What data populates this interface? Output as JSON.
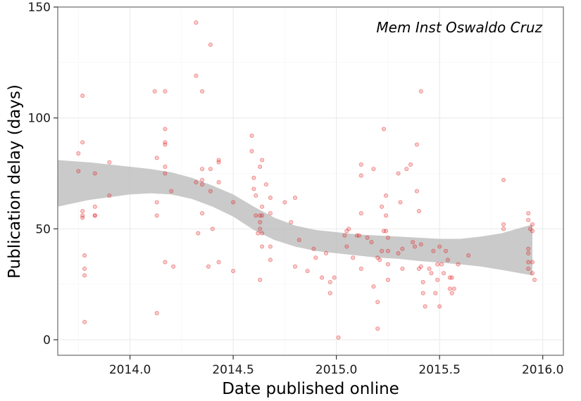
{
  "chart_data": {
    "type": "scatter",
    "title": "",
    "annotation": "Mem Inst Oswaldo Cruz",
    "xlabel": "Date published online",
    "ylabel": "Publication delay (days)",
    "xlim": [
      2013.65,
      2016.1
    ],
    "ylim": [
      -7,
      150
    ],
    "x_ticks": [
      2014.0,
      2014.5,
      2015.0,
      2015.5,
      2016.0
    ],
    "x_tick_labels": [
      "2014.0",
      "2014.5",
      "2015.0",
      "2015.5",
      "2016.0"
    ],
    "y_ticks": [
      0,
      50,
      100,
      150
    ],
    "y_tick_labels": [
      "0",
      "50",
      "100",
      "150"
    ],
    "grid": true,
    "point_color": "#e41a1c",
    "band_color": "#bdbdbd",
    "points": [
      [
        2013.75,
        84
      ],
      [
        2013.75,
        76
      ],
      [
        2013.77,
        110
      ],
      [
        2013.77,
        89
      ],
      [
        2013.77,
        58
      ],
      [
        2013.77,
        56
      ],
      [
        2013.77,
        55
      ],
      [
        2013.78,
        38
      ],
      [
        2013.78,
        32
      ],
      [
        2013.78,
        29
      ],
      [
        2013.78,
        8
      ],
      [
        2013.83,
        75
      ],
      [
        2013.83,
        60
      ],
      [
        2013.83,
        56
      ],
      [
        2013.83,
        56
      ],
      [
        2013.9,
        80
      ],
      [
        2013.9,
        65
      ],
      [
        2014.12,
        112
      ],
      [
        2014.13,
        82
      ],
      [
        2014.13,
        62
      ],
      [
        2014.13,
        56
      ],
      [
        2014.13,
        12
      ],
      [
        2014.17,
        112
      ],
      [
        2014.17,
        95
      ],
      [
        2014.17,
        89
      ],
      [
        2014.17,
        88
      ],
      [
        2014.17,
        78
      ],
      [
        2014.17,
        75
      ],
      [
        2014.17,
        35
      ],
      [
        2014.2,
        67
      ],
      [
        2014.21,
        33
      ],
      [
        2014.32,
        143
      ],
      [
        2014.32,
        119
      ],
      [
        2014.32,
        71
      ],
      [
        2014.33,
        48
      ],
      [
        2014.35,
        112
      ],
      [
        2014.35,
        77
      ],
      [
        2014.35,
        72
      ],
      [
        2014.35,
        70
      ],
      [
        2014.35,
        57
      ],
      [
        2014.38,
        33
      ],
      [
        2014.39,
        133
      ],
      [
        2014.39,
        77
      ],
      [
        2014.39,
        67
      ],
      [
        2014.4,
        50
      ],
      [
        2014.43,
        81
      ],
      [
        2014.43,
        80
      ],
      [
        2014.43,
        71
      ],
      [
        2014.43,
        35
      ],
      [
        2014.5,
        62
      ],
      [
        2014.5,
        31
      ],
      [
        2014.59,
        92
      ],
      [
        2014.59,
        85
      ],
      [
        2014.6,
        73
      ],
      [
        2014.6,
        68
      ],
      [
        2014.61,
        65
      ],
      [
        2014.61,
        56
      ],
      [
        2014.62,
        48
      ],
      [
        2014.63,
        78
      ],
      [
        2014.63,
        56
      ],
      [
        2014.63,
        53
      ],
      [
        2014.63,
        50
      ],
      [
        2014.63,
        27
      ],
      [
        2014.64,
        81
      ],
      [
        2014.64,
        60
      ],
      [
        2014.64,
        56
      ],
      [
        2014.64,
        48
      ],
      [
        2014.64,
        42
      ],
      [
        2014.66,
        70
      ],
      [
        2014.68,
        64
      ],
      [
        2014.68,
        57
      ],
      [
        2014.68,
        42
      ],
      [
        2014.68,
        36
      ],
      [
        2014.75,
        62
      ],
      [
        2014.78,
        53
      ],
      [
        2014.8,
        64
      ],
      [
        2014.8,
        33
      ],
      [
        2014.82,
        45
      ],
      [
        2014.86,
        31
      ],
      [
        2014.89,
        41
      ],
      [
        2014.9,
        37
      ],
      [
        2014.93,
        28
      ],
      [
        2014.95,
        39
      ],
      [
        2014.97,
        26
      ],
      [
        2014.97,
        21
      ],
      [
        2014.99,
        28
      ],
      [
        2015.01,
        1
      ],
      [
        2015.04,
        47
      ],
      [
        2015.05,
        49
      ],
      [
        2015.05,
        42
      ],
      [
        2015.06,
        50
      ],
      [
        2015.08,
        37
      ],
      [
        2015.1,
        47
      ],
      [
        2015.11,
        47
      ],
      [
        2015.12,
        79
      ],
      [
        2015.12,
        74
      ],
      [
        2015.12,
        57
      ],
      [
        2015.12,
        32
      ],
      [
        2015.15,
        46
      ],
      [
        2015.17,
        44
      ],
      [
        2015.18,
        77
      ],
      [
        2015.18,
        24
      ],
      [
        2015.2,
        37
      ],
      [
        2015.2,
        17
      ],
      [
        2015.2,
        5
      ],
      [
        2015.21,
        36
      ],
      [
        2015.22,
        60
      ],
      [
        2015.22,
        40
      ],
      [
        2015.23,
        95
      ],
      [
        2015.23,
        49
      ],
      [
        2015.24,
        65
      ],
      [
        2015.24,
        56
      ],
      [
        2015.24,
        49
      ],
      [
        2015.25,
        46
      ],
      [
        2015.25,
        40
      ],
      [
        2015.25,
        34
      ],
      [
        2015.25,
        27
      ],
      [
        2015.3,
        75
      ],
      [
        2015.3,
        39
      ],
      [
        2015.31,
        62
      ],
      [
        2015.32,
        41
      ],
      [
        2015.32,
        32
      ],
      [
        2015.34,
        77
      ],
      [
        2015.36,
        79
      ],
      [
        2015.37,
        44
      ],
      [
        2015.38,
        42
      ],
      [
        2015.39,
        88
      ],
      [
        2015.39,
        67
      ],
      [
        2015.4,
        58
      ],
      [
        2015.4,
        32
      ],
      [
        2015.41,
        112
      ],
      [
        2015.41,
        43
      ],
      [
        2015.41,
        33
      ],
      [
        2015.42,
        26
      ],
      [
        2015.42,
        21
      ],
      [
        2015.43,
        15
      ],
      [
        2015.45,
        32
      ],
      [
        2015.46,
        30
      ],
      [
        2015.47,
        40
      ],
      [
        2015.48,
        21
      ],
      [
        2015.49,
        34
      ],
      [
        2015.49,
        27
      ],
      [
        2015.5,
        42
      ],
      [
        2015.5,
        15
      ],
      [
        2015.51,
        34
      ],
      [
        2015.52,
        30
      ],
      [
        2015.53,
        40
      ],
      [
        2015.54,
        36
      ],
      [
        2015.55,
        28
      ],
      [
        2015.55,
        23
      ],
      [
        2015.56,
        28
      ],
      [
        2015.56,
        21
      ],
      [
        2015.57,
        23
      ],
      [
        2015.59,
        34
      ],
      [
        2015.64,
        38
      ],
      [
        2015.81,
        72
      ],
      [
        2015.81,
        52
      ],
      [
        2015.81,
        50
      ],
      [
        2015.93,
        57
      ],
      [
        2015.93,
        54
      ],
      [
        2015.93,
        41
      ],
      [
        2015.93,
        39
      ],
      [
        2015.93,
        35
      ],
      [
        2015.93,
        32
      ],
      [
        2015.94,
        50
      ],
      [
        2015.95,
        52
      ],
      [
        2015.95,
        49
      ],
      [
        2015.95,
        35
      ],
      [
        2015.95,
        30
      ],
      [
        2015.96,
        27
      ]
    ],
    "smooth_band": {
      "x": [
        2013.65,
        2013.8,
        2014.0,
        2014.1,
        2014.2,
        2014.3,
        2014.4,
        2014.5,
        2014.6,
        2014.7,
        2014.8,
        2014.9,
        2015.0,
        2015.1,
        2015.2,
        2015.3,
        2015.4,
        2015.5,
        2015.6,
        2015.7,
        2015.8,
        2015.95
      ],
      "lower": [
        60,
        63,
        65.5,
        66,
        65.5,
        63.5,
        60,
        55.5,
        49.5,
        45,
        42,
        40,
        39,
        38,
        37,
        36.5,
        35.5,
        34.8,
        34,
        33,
        31.5,
        29
      ],
      "upper": [
        81,
        80,
        78,
        77,
        75.5,
        73,
        69.5,
        65.5,
        60,
        55,
        51.5,
        49.5,
        48.5,
        47.5,
        47,
        46.5,
        46,
        45.5,
        45.5,
        46.5,
        48,
        52
      ]
    }
  }
}
